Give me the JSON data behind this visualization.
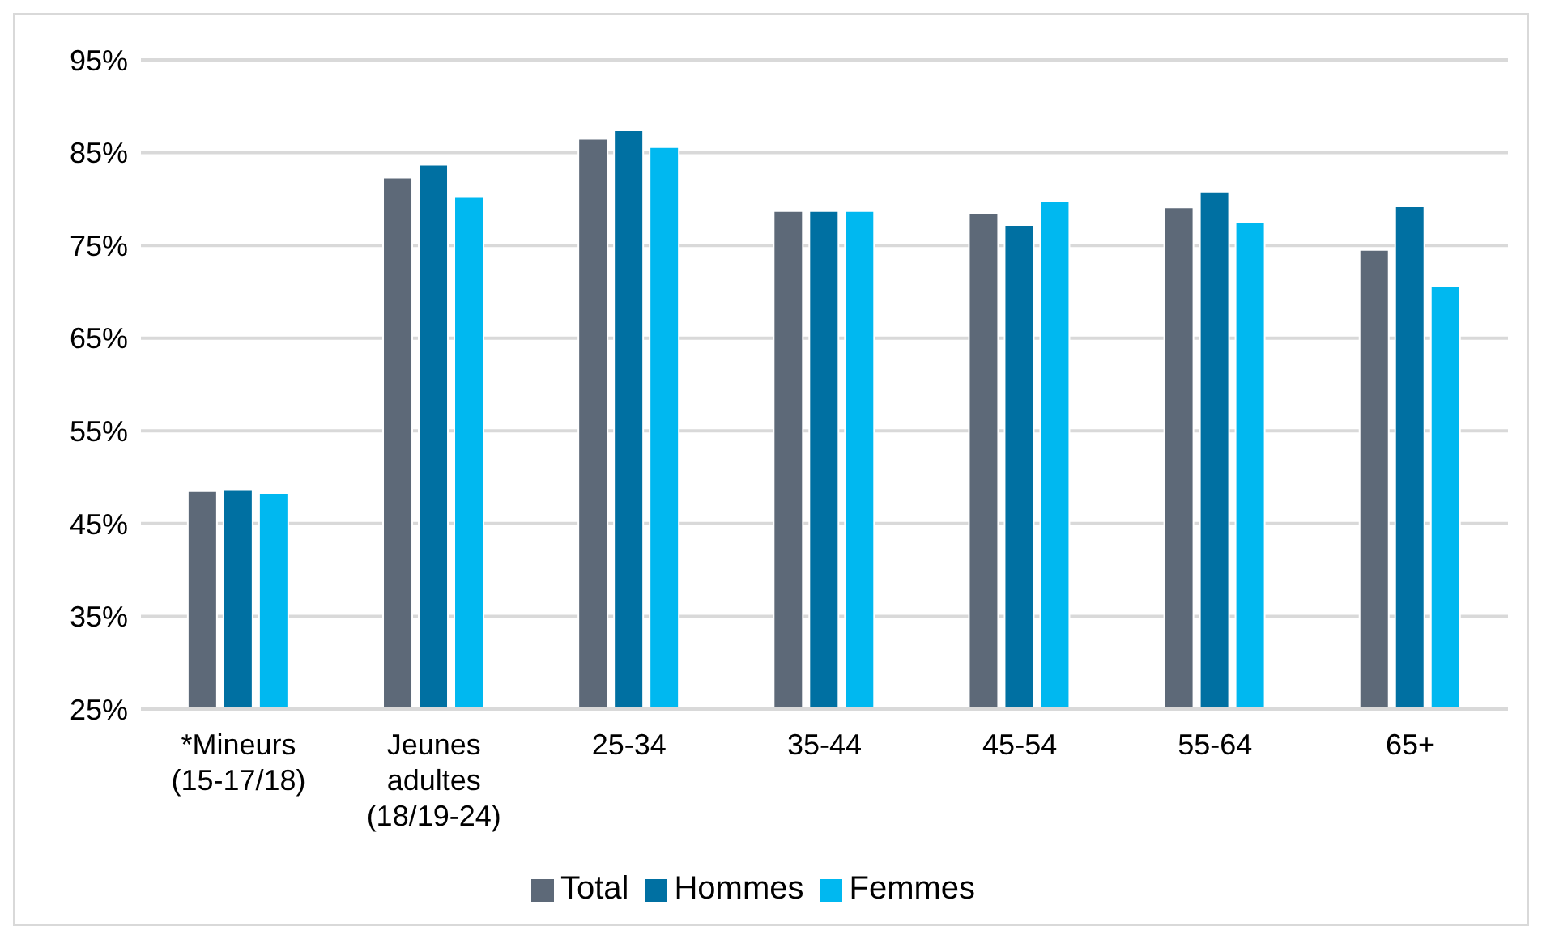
{
  "chart_data": {
    "type": "bar",
    "categories": [
      "*Mineurs\n(15-17/18)",
      "Jeunes\nadultes\n(18/19-24)",
      "25-34",
      "35-44",
      "45-54",
      "55-64",
      "65+"
    ],
    "series": [
      {
        "name": "Total",
        "color": "#5d6978",
        "values": [
          48.5,
          82.3,
          86.5,
          78.7,
          78.5,
          79.1,
          74.5
        ]
      },
      {
        "name": "Hommes",
        "color": "#0070a2",
        "values": [
          48.7,
          83.7,
          87.4,
          78.7,
          77.2,
          80.8,
          79.2
        ]
      },
      {
        "name": "Femmes",
        "color": "#00b8f0",
        "values": [
          48.3,
          80.3,
          85.6,
          78.7,
          79.8,
          77.5,
          70.6
        ]
      }
    ],
    "ylim": [
      25,
      95
    ],
    "yticks": [
      {
        "value": 25,
        "label": "25%"
      },
      {
        "value": 35,
        "label": "35%"
      },
      {
        "value": 45,
        "label": "45%"
      },
      {
        "value": 55,
        "label": "55%"
      },
      {
        "value": 65,
        "label": "65%"
      },
      {
        "value": 75,
        "label": "75%"
      },
      {
        "value": 85,
        "label": "85%"
      },
      {
        "value": 95,
        "label": "95%"
      }
    ],
    "grid": "y",
    "legend": "bottom"
  }
}
